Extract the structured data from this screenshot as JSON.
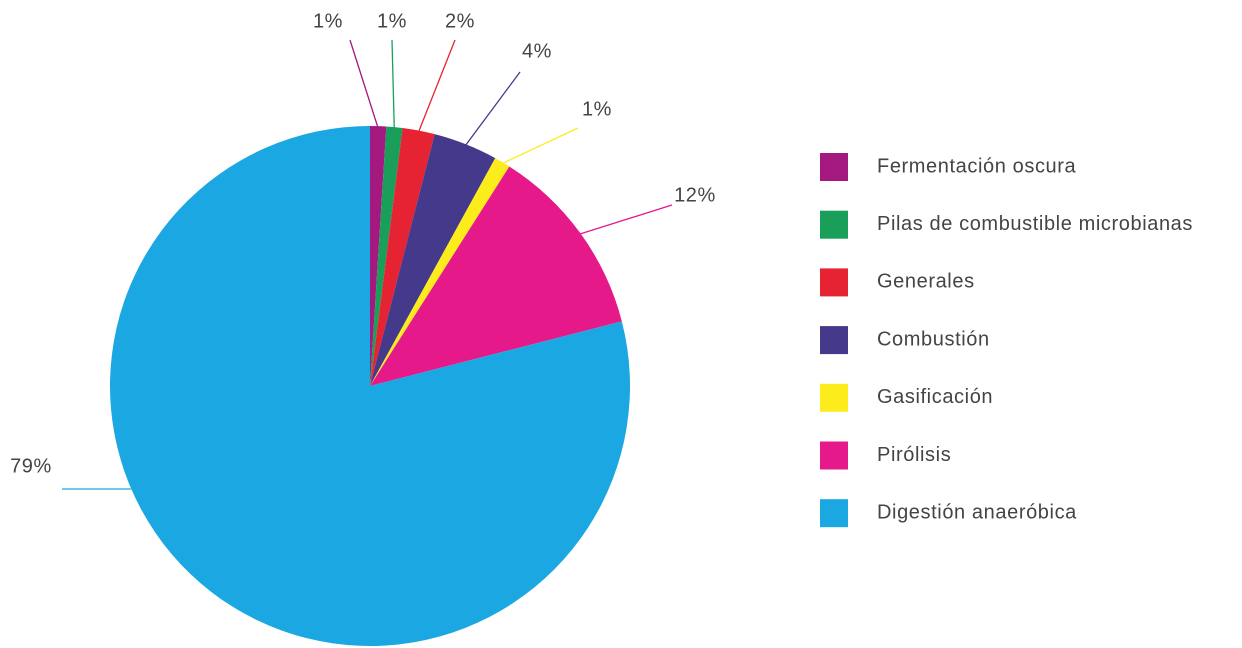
{
  "chart_data": {
    "type": "pie",
    "categories": [
      "Fermentación oscura",
      "Pilas de combustible microbianas",
      "Generales",
      "Combustión",
      "Gasificación",
      "Pirólisis",
      "Digestión anaeróbica"
    ],
    "values": [
      1,
      1,
      2,
      4,
      1,
      12,
      79
    ],
    "value_labels": [
      "1%",
      "1%",
      "2%",
      "4%",
      "1%",
      "12%",
      "79%"
    ],
    "colors": [
      "#a3197f",
      "#1a9f5a",
      "#e52332",
      "#45398b",
      "#fdec1b",
      "#e6198b",
      "#1ba7e1"
    ],
    "legend": "right"
  }
}
